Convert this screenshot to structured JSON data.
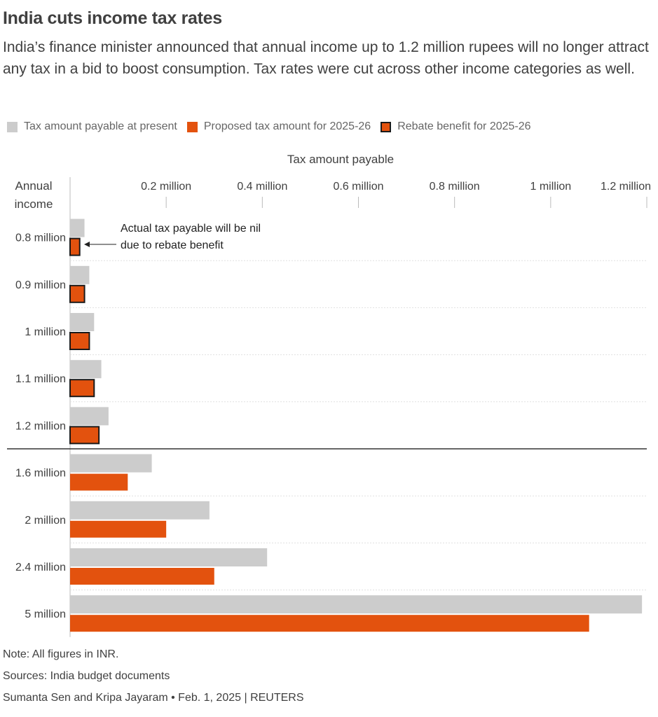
{
  "title": "India cuts income tax rates",
  "subtitle": "India’s finance minister announced that annual income up to 1.2 million rupees will no longer attract any tax in a bid to boost consumption. Tax rates were cut across other income categories as well.",
  "colors": {
    "present": "#cccccc",
    "proposed": "#e3520e",
    "rebate_border": "#1a1a1a",
    "text": "#404040",
    "grid": "#e0e0e0"
  },
  "chart_data": {
    "type": "bar",
    "orientation": "horizontal",
    "xlabel": "Tax amount payable",
    "ylabel": "Annual income",
    "xlim": [
      0,
      1.2
    ],
    "x_ticks": [
      {
        "value": 0.2,
        "label": "0.2 million"
      },
      {
        "value": 0.4,
        "label": "0.4 million"
      },
      {
        "value": 0.6,
        "label": "0.6 million"
      },
      {
        "value": 0.8,
        "label": "0.8 million"
      },
      {
        "value": 1.0,
        "label": "1 million"
      },
      {
        "value": 1.2,
        "label": "1.2 million"
      }
    ],
    "categories": [
      "0.8 million",
      "0.9 million",
      "1 million",
      "1.1 million",
      "1.2 million",
      "1.6 million",
      "2 million",
      "2.4 million",
      "5 million"
    ],
    "series": [
      {
        "name": "Tax amount payable at present",
        "values": [
          0.03,
          0.04,
          0.05,
          0.065,
          0.08,
          0.17,
          0.29,
          0.41,
          1.19
        ]
      },
      {
        "name": "Proposed tax amount for 2025-26",
        "values": [
          0.02,
          0.03,
          0.04,
          0.05,
          0.06,
          0.12,
          0.2,
          0.3,
          1.08
        ]
      }
    ],
    "rebate_categories": [
      "0.8 million",
      "0.9 million",
      "1 million",
      "1.1 million",
      "1.2 million"
    ],
    "legend": [
      {
        "label": "Tax amount payable at present",
        "style": "present"
      },
      {
        "label": "Proposed tax amount for 2025-26",
        "style": "proposed"
      },
      {
        "label": "Rebate benefit for 2025-26",
        "style": "rebate"
      }
    ],
    "legend_position": "top-left",
    "annotation": {
      "line1": "Actual tax payable will be nil",
      "line2": "due to rebate benefit"
    }
  },
  "footer": {
    "note": "Note: All figures in INR.",
    "sources": "Sources: India budget documents",
    "credit": "Sumanta Sen and Kripa Jayaram • Feb. 1, 2025 | REUTERS"
  }
}
